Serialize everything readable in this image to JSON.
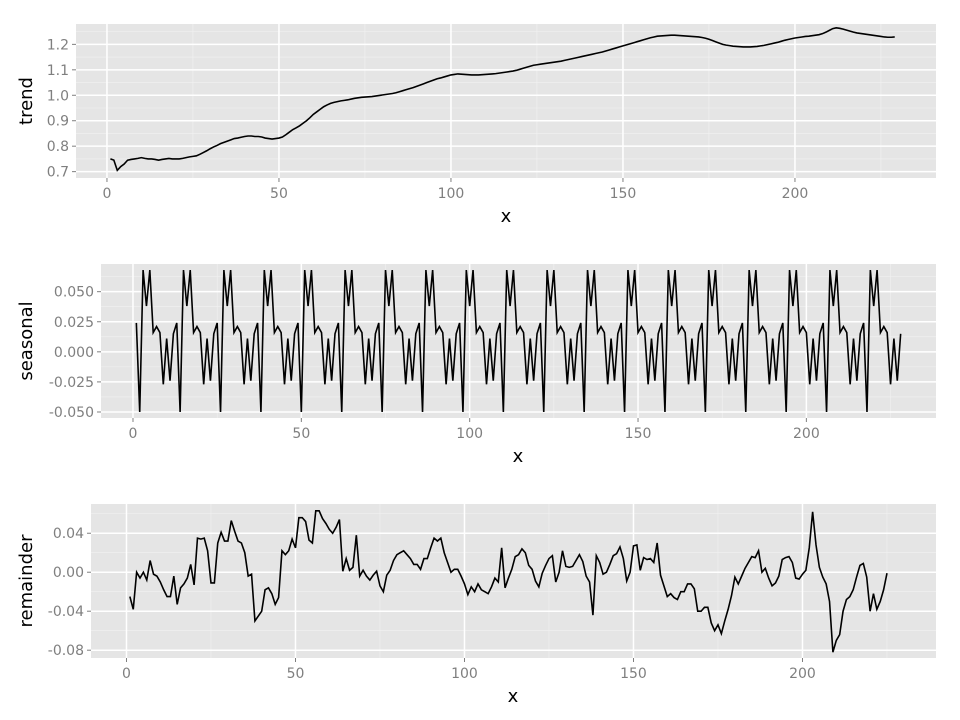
{
  "chart_data": [
    {
      "type": "line",
      "xlabel": "x",
      "ylabel": "trend",
      "xlim": [
        -9,
        241
      ],
      "ylim": [
        0.675,
        1.28
      ],
      "x_ticks": [
        0,
        50,
        100,
        150,
        200
      ],
      "x_tick_labels": [
        "0",
        "50",
        "100",
        "150",
        "200"
      ],
      "y_ticks": [
        0.7,
        0.8,
        0.9,
        1.0,
        1.1,
        1.2
      ],
      "y_tick_labels": [
        "0.7",
        "0.8",
        "0.9",
        "1.0",
        "1.1",
        "1.2"
      ],
      "grid": true,
      "background": "#e5e5e5",
      "line_color": "#000000",
      "series": [
        {
          "x_start": 1,
          "x_step": 1,
          "values": [
            0.75,
            0.745,
            0.705,
            0.72,
            0.73,
            0.745,
            0.748,
            0.75,
            0.752,
            0.755,
            0.752,
            0.75,
            0.75,
            0.748,
            0.745,
            0.748,
            0.75,
            0.752,
            0.75,
            0.75,
            0.75,
            0.752,
            0.755,
            0.758,
            0.76,
            0.762,
            0.768,
            0.775,
            0.782,
            0.79,
            0.797,
            0.803,
            0.81,
            0.815,
            0.82,
            0.825,
            0.83,
            0.832,
            0.835,
            0.838,
            0.84,
            0.84,
            0.838,
            0.838,
            0.836,
            0.832,
            0.83,
            0.828,
            0.83,
            0.832,
            0.836,
            0.845,
            0.855,
            0.865,
            0.872,
            0.88,
            0.89,
            0.9,
            0.912,
            0.925,
            0.935,
            0.945,
            0.955,
            0.962,
            0.968,
            0.972,
            0.975,
            0.978,
            0.98,
            0.982,
            0.985,
            0.988,
            0.99,
            0.992,
            0.993,
            0.994,
            0.995,
            0.997,
            0.999,
            1.001,
            1.003,
            1.005,
            1.007,
            1.01,
            1.014,
            1.018,
            1.022,
            1.026,
            1.03,
            1.035,
            1.04,
            1.045,
            1.05,
            1.055,
            1.06,
            1.065,
            1.068,
            1.072,
            1.076,
            1.08,
            1.082,
            1.084,
            1.083,
            1.082,
            1.081,
            1.08,
            1.08,
            1.08,
            1.081,
            1.082,
            1.083,
            1.084,
            1.085,
            1.087,
            1.089,
            1.091,
            1.093,
            1.095,
            1.098,
            1.102,
            1.106,
            1.11,
            1.114,
            1.118,
            1.12,
            1.122,
            1.124,
            1.126,
            1.128,
            1.13,
            1.132,
            1.134,
            1.137,
            1.14,
            1.143,
            1.146,
            1.149,
            1.152,
            1.155,
            1.158,
            1.161,
            1.164,
            1.167,
            1.17,
            1.174,
            1.178,
            1.182,
            1.186,
            1.19,
            1.194,
            1.198,
            1.202,
            1.206,
            1.21,
            1.214,
            1.218,
            1.222,
            1.226,
            1.229,
            1.232,
            1.233,
            1.234,
            1.235,
            1.236,
            1.236,
            1.235,
            1.234,
            1.233,
            1.232,
            1.231,
            1.23,
            1.229,
            1.227,
            1.224,
            1.22,
            1.215,
            1.21,
            1.205,
            1.2,
            1.197,
            1.195,
            1.193,
            1.192,
            1.191,
            1.19,
            1.19,
            1.19,
            1.191,
            1.192,
            1.194,
            1.196,
            1.199,
            1.202,
            1.205,
            1.208,
            1.212,
            1.216,
            1.219,
            1.222,
            1.225,
            1.227,
            1.229,
            1.231,
            1.232,
            1.234,
            1.236,
            1.238,
            1.242,
            1.248,
            1.255,
            1.262,
            1.265,
            1.263,
            1.26,
            1.256,
            1.252,
            1.248,
            1.245,
            1.243,
            1.241,
            1.239,
            1.237,
            1.235,
            1.233,
            1.231,
            1.229,
            1.228,
            1.228,
            1.229
          ]
        }
      ]
    },
    {
      "type": "line",
      "xlabel": "x",
      "ylabel": "seasonal",
      "xlim": [
        -9.5,
        238.5
      ],
      "ylim": [
        -0.055,
        0.073
      ],
      "x_ticks": [
        0,
        50,
        100,
        150,
        200
      ],
      "x_tick_labels": [
        "0",
        "50",
        "100",
        "150",
        "200"
      ],
      "y_ticks": [
        -0.05,
        -0.025,
        0.0,
        0.025,
        0.05
      ],
      "y_tick_labels": [
        "-0.050",
        "-0.025",
        "0.000",
        "0.025",
        "0.050"
      ],
      "grid": true,
      "background": "#e5e5e5",
      "line_color": "#000000",
      "series": [
        {
          "x_start": 1,
          "x_step": 1,
          "period": 12,
          "repeat_until_x": 228,
          "pattern": [
            0.024,
            -0.05,
            0.068,
            0.038,
            0.068,
            0.016,
            0.021,
            0.016,
            -0.027,
            0.011,
            -0.024,
            0.015
          ]
        }
      ]
    },
    {
      "type": "line",
      "xlabel": "x",
      "ylabel": "remainder",
      "xlim": [
        -10.5,
        239.5
      ],
      "ylim": [
        -0.088,
        0.07
      ],
      "x_ticks": [
        0,
        50,
        100,
        150,
        200
      ],
      "x_tick_labels": [
        "0",
        "50",
        "100",
        "150",
        "200"
      ],
      "y_ticks": [
        -0.08,
        -0.04,
        0.0,
        0.04
      ],
      "y_tick_labels": [
        "-0.08",
        "-0.04",
        "0.00",
        "0.04"
      ],
      "grid": true,
      "background": "#e5e5e5",
      "line_color": "#000000",
      "series": [
        {
          "x_start": 1,
          "x_step": 1,
          "values": [
            -0.025,
            -0.038,
            0.0,
            -0.006,
            0.0,
            -0.008,
            0.012,
            -0.002,
            -0.004,
            -0.01,
            -0.018,
            -0.025,
            -0.025,
            -0.004,
            -0.033,
            -0.016,
            -0.012,
            -0.006,
            0.008,
            -0.013,
            0.035,
            0.034,
            0.035,
            0.022,
            -0.011,
            -0.011,
            0.03,
            0.041,
            0.032,
            0.032,
            0.053,
            0.042,
            0.032,
            0.03,
            0.02,
            -0.004,
            -0.002,
            -0.05,
            -0.045,
            -0.04,
            -0.018,
            -0.016,
            -0.022,
            -0.033,
            -0.026,
            0.022,
            0.018,
            0.022,
            0.034,
            0.025,
            0.056,
            0.056,
            0.052,
            0.033,
            0.03,
            0.063,
            0.063,
            0.055,
            0.05,
            0.044,
            0.04,
            0.046,
            0.054,
            0.001,
            0.014,
            0.002,
            0.005,
            0.038,
            -0.004,
            0.002,
            -0.004,
            -0.008,
            -0.003,
            0.001,
            -0.014,
            -0.02,
            -0.003,
            0.002,
            0.012,
            0.018,
            0.02,
            0.022,
            0.018,
            0.014,
            0.008,
            0.008,
            0.003,
            0.014,
            0.014,
            0.025,
            0.035,
            0.032,
            0.035,
            0.02,
            0.01,
            0.0,
            0.003,
            0.003,
            -0.004,
            -0.012,
            -0.023,
            -0.015,
            -0.02,
            -0.012,
            -0.018,
            -0.02,
            -0.022,
            -0.015,
            -0.006,
            -0.01,
            0.025,
            -0.016,
            -0.006,
            0.003,
            0.016,
            0.018,
            0.024,
            0.02,
            0.007,
            0.003,
            -0.009,
            -0.015,
            -0.001,
            0.007,
            0.014,
            0.017,
            -0.01,
            0.0,
            0.022,
            0.006,
            0.005,
            0.006,
            0.012,
            0.018,
            0.011,
            -0.004,
            -0.01,
            -0.044,
            0.017,
            0.01,
            -0.002,
            0.0,
            0.008,
            0.017,
            0.019,
            0.026,
            0.014,
            -0.009,
            0.0,
            0.027,
            0.028,
            0.002,
            0.015,
            0.013,
            0.014,
            0.01,
            0.03,
            -0.003,
            -0.014,
            -0.025,
            -0.022,
            -0.026,
            -0.028,
            -0.02,
            -0.02,
            -0.012,
            -0.012,
            -0.017,
            -0.04,
            -0.04,
            -0.036,
            -0.036,
            -0.052,
            -0.06,
            -0.054,
            -0.063,
            -0.05,
            -0.038,
            -0.024,
            -0.005,
            -0.012,
            -0.004,
            0.004,
            0.01,
            0.016,
            0.015,
            0.022,
            0.0,
            0.004,
            -0.006,
            -0.014,
            -0.011,
            -0.004,
            0.013,
            0.015,
            0.016,
            0.01,
            -0.006,
            -0.007,
            -0.002,
            0.002,
            0.025,
            0.062,
            0.028,
            0.005,
            -0.005,
            -0.012,
            -0.03,
            -0.082,
            -0.07,
            -0.064,
            -0.04,
            -0.028,
            -0.025,
            -0.018,
            -0.005,
            0.007,
            0.009,
            -0.005,
            -0.04,
            -0.022,
            -0.038,
            -0.03,
            -0.018,
            -0.001
          ]
        }
      ]
    }
  ]
}
